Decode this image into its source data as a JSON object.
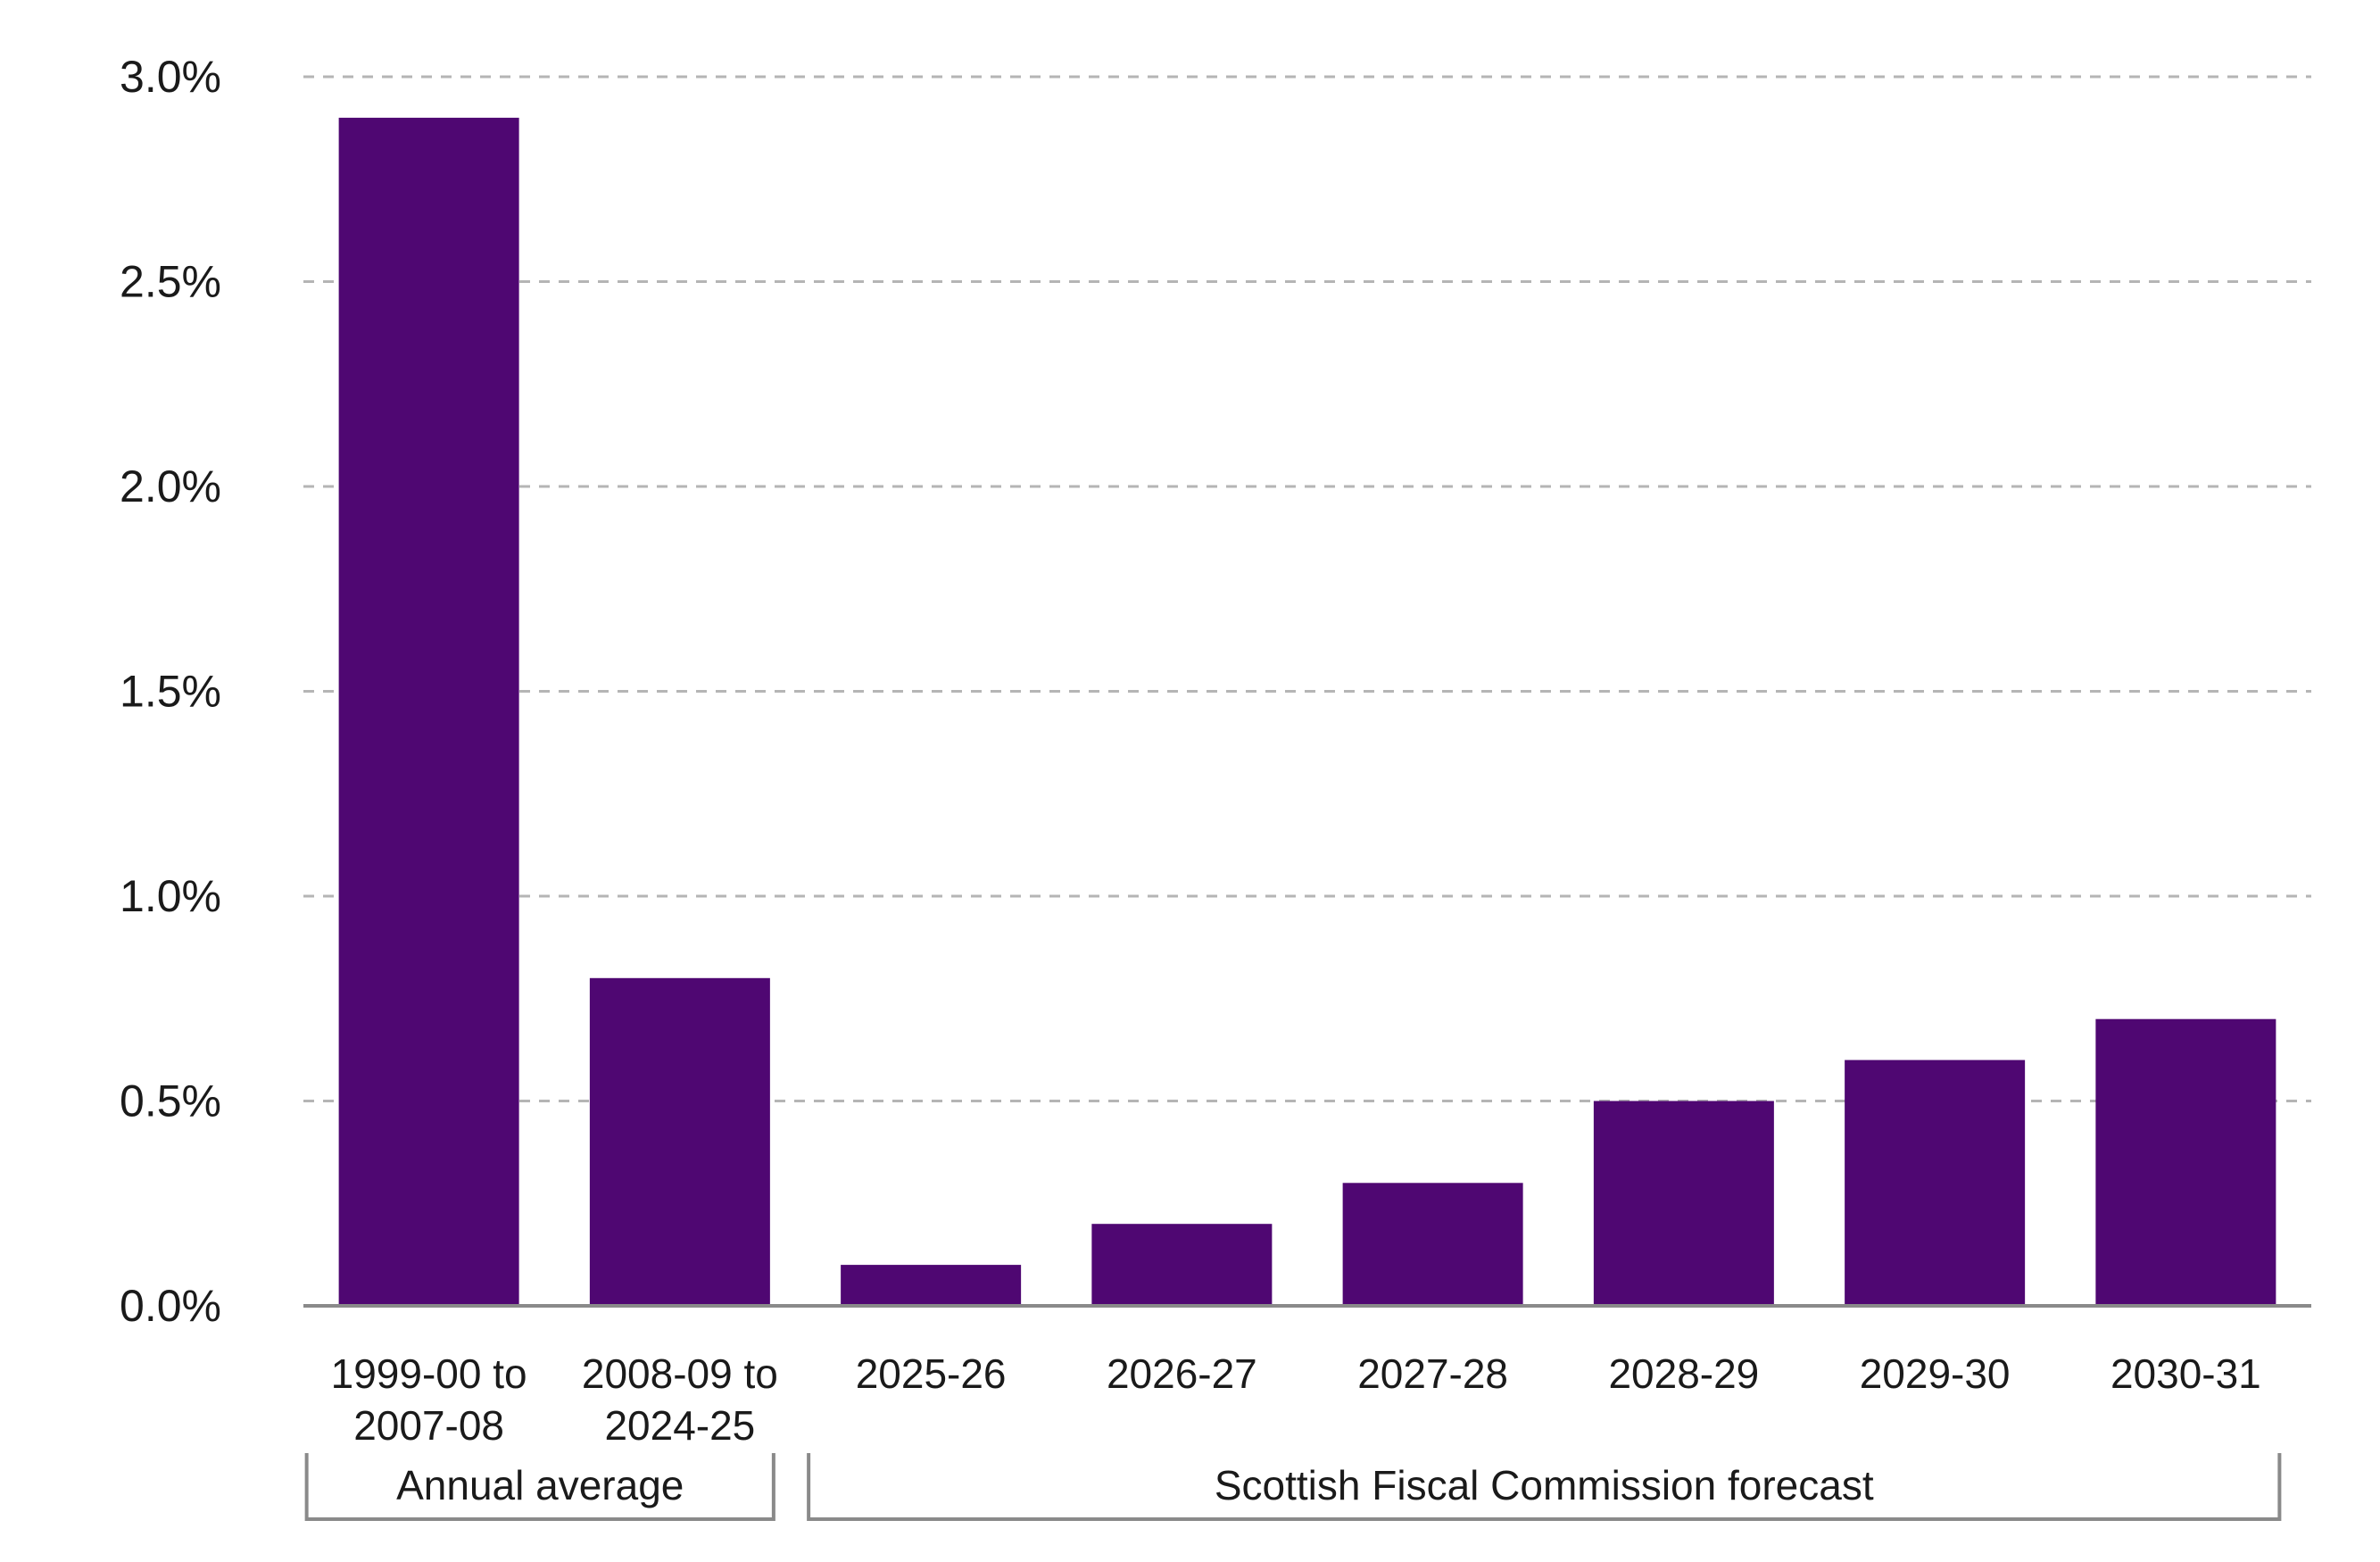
{
  "chart_data": {
    "type": "bar",
    "title": "",
    "xlabel": "",
    "ylabel": "",
    "ylim": [
      0,
      3.0
    ],
    "yticks": [
      0.0,
      0.5,
      1.0,
      1.5,
      2.0,
      2.5,
      3.0
    ],
    "ytick_labels": [
      "0.0%",
      "0.5%",
      "1.0%",
      "1.5%",
      "2.0%",
      "2.5%",
      "3.0%"
    ],
    "grid": "horizontal dashed",
    "bar_color": "#4f0772",
    "grid_color": "#b5b5b5",
    "axis_color": "#8a8a8a",
    "categories": [
      [
        "1999-00 to",
        "2007-08"
      ],
      [
        "2008-09 to",
        "2024-25"
      ],
      [
        "2025-26"
      ],
      [
        "2026-27"
      ],
      [
        "2027-28"
      ],
      [
        "2028-29"
      ],
      [
        "2029-30"
      ],
      [
        "2030-31"
      ]
    ],
    "values": [
      2.9,
      0.8,
      0.1,
      0.2,
      0.3,
      0.5,
      0.6,
      0.7
    ],
    "groups": [
      {
        "label": "Annual average",
        "start": 0,
        "end": 1
      },
      {
        "label": "Scottish Fiscal Commission forecast",
        "start": 2,
        "end": 7
      }
    ]
  }
}
